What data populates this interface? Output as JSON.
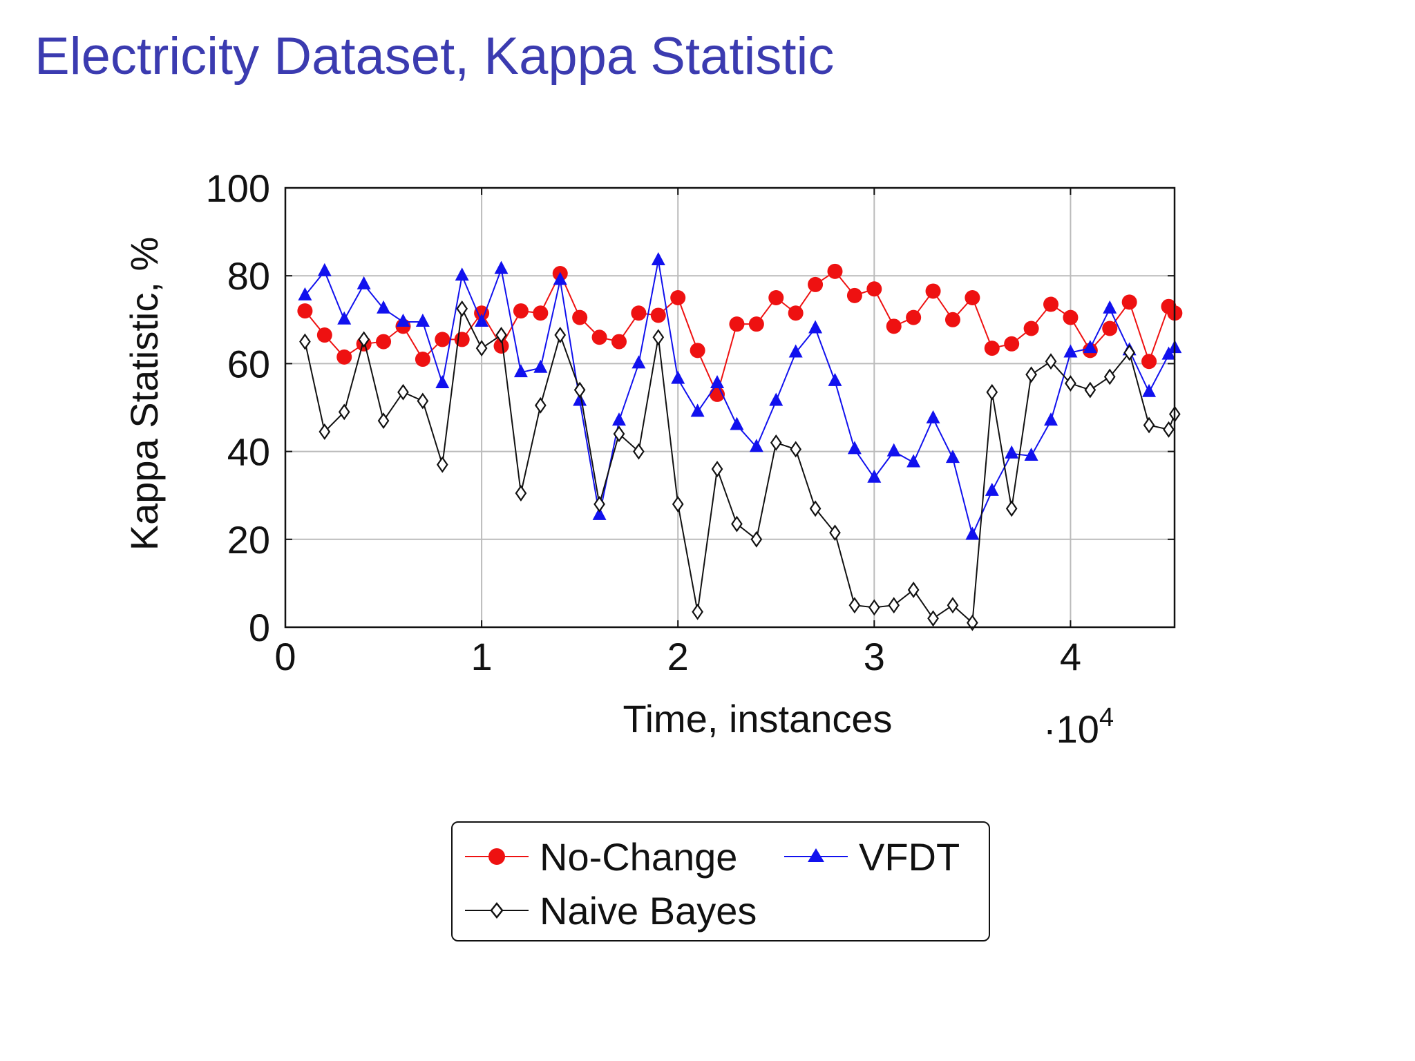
{
  "title": "Electricity Dataset, Kappa Statistic",
  "chart_data": {
    "type": "line",
    "xlabel": "Time, instances",
    "ylabel": "Kappa Statistic, %",
    "x_scale_label": "·10",
    "x_scale_exp": "4",
    "xlim": [
      0,
      45300
    ],
    "ylim": [
      0,
      100
    ],
    "x_ticks": [
      0,
      10000,
      20000,
      30000,
      40000
    ],
    "x_tick_labels": [
      "0",
      "1",
      "2",
      "3",
      "4"
    ],
    "y_ticks": [
      0,
      20,
      40,
      60,
      80,
      100
    ],
    "y_tick_labels": [
      "0",
      "20",
      "40",
      "60",
      "80",
      "100"
    ],
    "grid": true,
    "legend_position": "bottom-center",
    "x": [
      1000,
      2000,
      3000,
      4000,
      5000,
      6000,
      7000,
      8000,
      9000,
      10000,
      11000,
      12000,
      13000,
      14000,
      15000,
      16000,
      17000,
      18000,
      19000,
      20000,
      21000,
      22000,
      23000,
      24000,
      25000,
      26000,
      27000,
      28000,
      29000,
      30000,
      31000,
      32000,
      33000,
      34000,
      35000,
      36000,
      37000,
      38000,
      39000,
      40000,
      41000,
      42000,
      43000,
      44000,
      45000,
      45312
    ],
    "series": [
      {
        "name": "No-Change",
        "color": "#ee1111",
        "marker": "circle",
        "values": [
          72,
          66.5,
          61.5,
          64.5,
          65,
          68.5,
          61,
          65.5,
          65.5,
          71.5,
          64,
          72,
          71.5,
          80.5,
          70.5,
          66,
          65,
          71.5,
          71,
          75,
          63,
          53,
          69,
          69,
          75,
          71.5,
          78,
          81,
          75.5,
          77,
          68.5,
          70.5,
          76.5,
          70,
          75,
          63.5,
          64.5,
          68,
          73.5,
          70.5,
          63,
          68,
          74,
          60.5,
          73,
          71.5
        ]
      },
      {
        "name": "VFDT",
        "color": "#1111ee",
        "marker": "triangle",
        "values": [
          75.5,
          81,
          70,
          78,
          72.5,
          69.5,
          69.5,
          55.5,
          80,
          69.5,
          81.5,
          58,
          59,
          79,
          51.5,
          25.5,
          47,
          60,
          83.5,
          56.5,
          49,
          55.5,
          46,
          41,
          51.5,
          62.5,
          68,
          56,
          40.5,
          34,
          40,
          37.5,
          47.5,
          38.5,
          21,
          31,
          39.5,
          39,
          47,
          62.5,
          63.5,
          72.5,
          63,
          53.5,
          62,
          63.5
        ]
      },
      {
        "name": "Naive Bayes",
        "color": "#111111",
        "marker": "diamond",
        "values": [
          65,
          44.5,
          49,
          65.5,
          47,
          53.5,
          51.5,
          37,
          72.5,
          63.5,
          66.5,
          30.5,
          50.5,
          66.5,
          54,
          28,
          44,
          40,
          66,
          28,
          3.5,
          36,
          23.5,
          20,
          42,
          40.5,
          27,
          21.5,
          5,
          4.5,
          5,
          8.5,
          2,
          5,
          1,
          53.5,
          27,
          57.5,
          60.5,
          55.5,
          54,
          57,
          62.5,
          46,
          45,
          48.5
        ]
      }
    ]
  }
}
